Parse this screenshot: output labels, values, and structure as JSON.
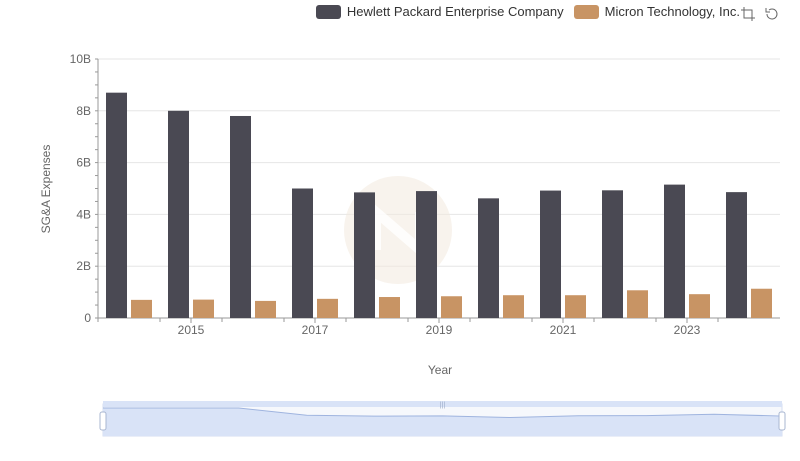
{
  "chart_data": {
    "type": "bar",
    "xlabel": "Year",
    "ylabel": "SG&A Expenses",
    "ylim": [
      0,
      10000000000
    ],
    "y_ticks": [
      "0",
      "2B",
      "4B",
      "6B",
      "8B",
      "10B"
    ],
    "x_tick_labels": [
      "2015",
      "2017",
      "2019",
      "2021",
      "2023"
    ],
    "categories": [
      "2014",
      "2015",
      "2016",
      "2017",
      "2018",
      "2019",
      "2020",
      "2021",
      "2022",
      "2023",
      "2024"
    ],
    "series": [
      {
        "name": "Hewlett Packard Enterprise Company",
        "color": "#4a4953",
        "values": [
          8700000000,
          8000000000,
          7800000000,
          5000000000,
          4850000000,
          4900000000,
          4620000000,
          4920000000,
          4930000000,
          5150000000,
          4860000000
        ]
      },
      {
        "name": "Micron Technology, Inc.",
        "color": "#c89464",
        "values": [
          700000000,
          710000000,
          660000000,
          740000000,
          810000000,
          840000000,
          880000000,
          880000000,
          1070000000,
          920000000,
          1130000000
        ]
      }
    ],
    "legend_position": "top-right",
    "grid": true,
    "zoom_slider": true
  },
  "toolbox": {
    "icons": [
      "zoom-icon",
      "restore-icon"
    ]
  }
}
